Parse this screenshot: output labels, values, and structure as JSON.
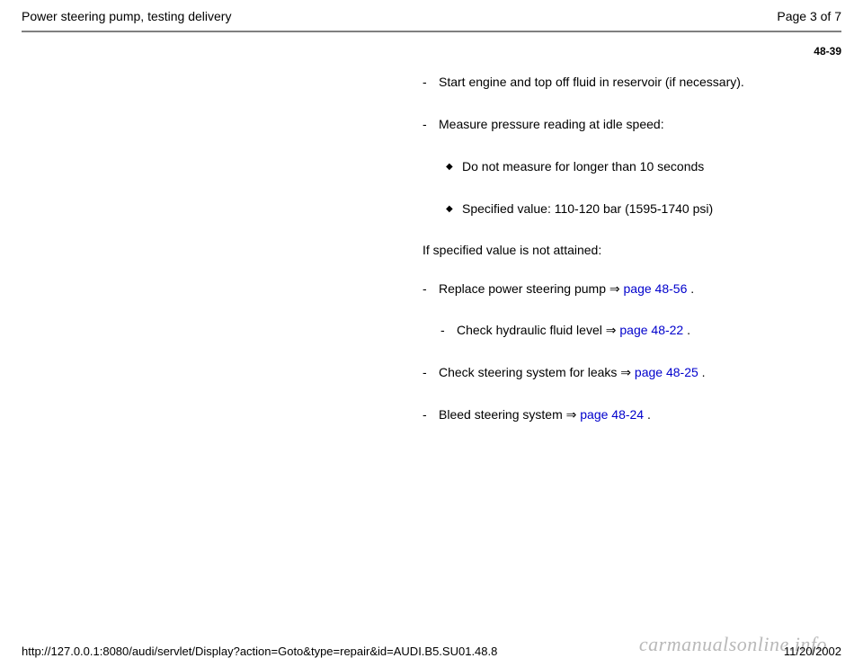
{
  "header": {
    "title": "Power steering pump, testing delivery",
    "page_label": "Page 3 of 7"
  },
  "page_code": "48-39",
  "items": [
    {
      "marker": "-",
      "text": "Start engine and top off fluid in reservoir (if necessary)."
    },
    {
      "marker": "-",
      "text": "Measure pressure reading at idle speed:"
    }
  ],
  "subitems": [
    {
      "text": "Do not measure for longer than 10 seconds"
    },
    {
      "text": "Specified value: 110-120 bar (1595-1740 psi)"
    }
  ],
  "plain": "If specified value is not attained:",
  "link_items": [
    {
      "pre": "Replace power steering pump  ",
      "link": "page 48-56",
      "post": " .",
      "indent": false
    },
    {
      "pre": "Check hydraulic fluid level  ",
      "link": "page 48-22",
      "post": " .",
      "indent": true
    },
    {
      "pre": "Check steering system for leaks  ",
      "link": "page 48-25",
      "post": " .",
      "indent": false
    },
    {
      "pre": "Bleed steering system  ",
      "link": "page 48-24",
      "post": " .",
      "indent": false
    }
  ],
  "footer": {
    "url": "http://127.0.0.1:8080/audi/servlet/Display?action=Goto&type=repair&id=AUDI.B5.SU01.48.8",
    "date": "11/20/2002"
  },
  "watermark": "carmanualsonline.info",
  "arrow_glyph": "⇒",
  "diamond_glyph": "◆"
}
